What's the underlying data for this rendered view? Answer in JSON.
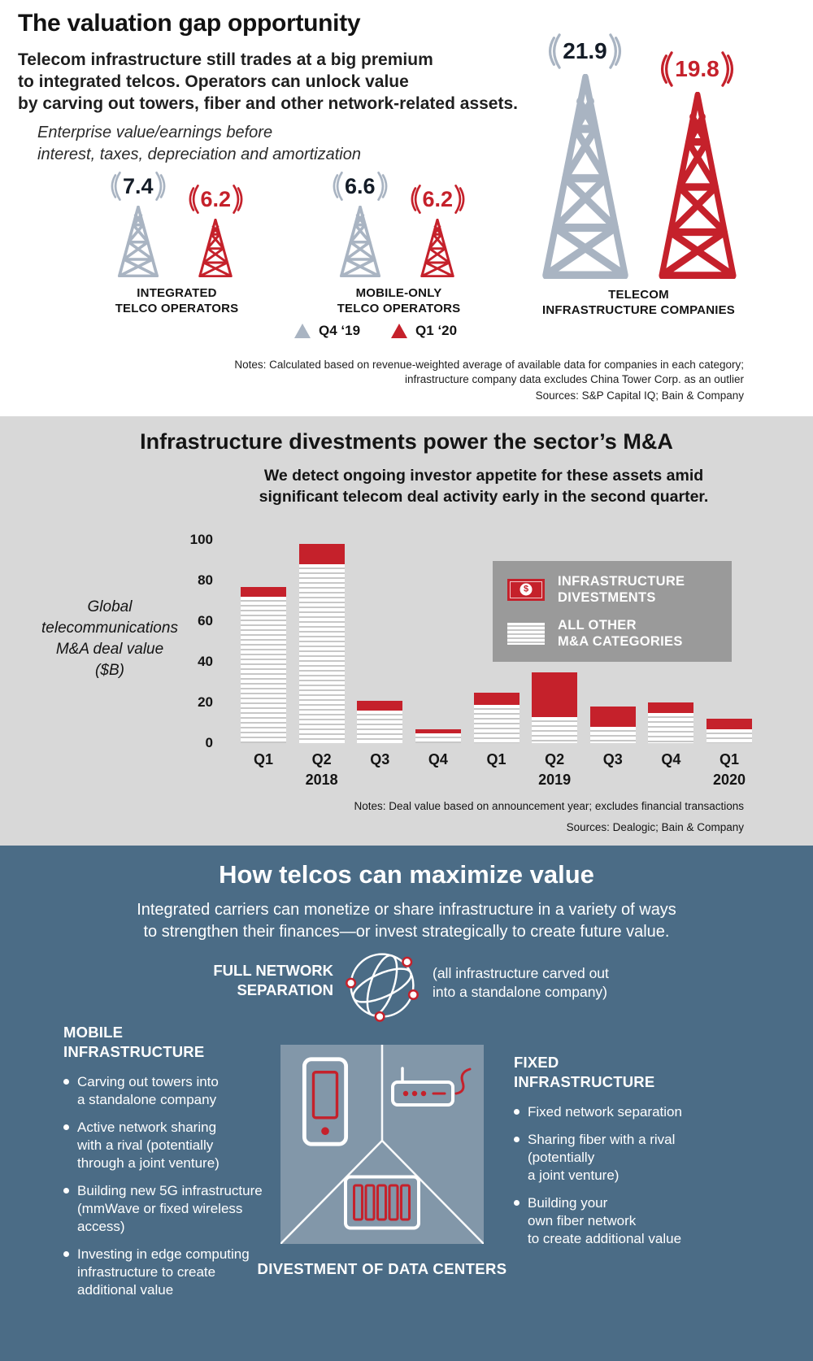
{
  "colors": {
    "accent_red": "#c5212b",
    "tower_gray": "#a9b4c2",
    "mid_bg": "#d8d8d8",
    "legend_bg": "#9a9a9a",
    "bottom_bg": "#4b6c86",
    "panel_bg": "#8297a9"
  },
  "section_valuation": {
    "title": "The valuation gap opportunity",
    "subtitle": "Telecom infrastructure still trades at a big premium\nto integrated telcos. Operators can unlock value\nby carving out towers, fiber and other network-related assets.",
    "metric_definition": "Enterprise value/earnings before\ninterest, taxes, depreciation and amortization",
    "groups": [
      {
        "label": "INTEGRATED\nTELCO OPERATORS"
      },
      {
        "label": "MOBILE-ONLY\nTELCO OPERATORS"
      },
      {
        "label": "TELECOM\nINFRASTRUCTURE COMPANIES"
      }
    ],
    "legend_q4": "Q4 ‘19",
    "legend_q1": "Q1 ‘20",
    "notes": "Notes: Calculated based on revenue-weighted average of available data for companies in each category;\ninfrastructure company data excludes China Tower Corp. as an outlier",
    "sources": "Sources: S&P Capital IQ; Bain & Company"
  },
  "section_ma": {
    "title": "Infrastructure divestments power the sector’s M&A",
    "subtitle": "We detect ongoing investor appetite for these assets amid\nsignificant telecom deal activity early in the second quarter.",
    "axis_title": "Global\ntelecommunications\nM&A deal value\n($B)",
    "legend_infra": "INFRASTRUCTURE\nDIVESTMENTS",
    "legend_other": "ALL OTHER\nM&A CATEGORIES",
    "notes": "Notes: Deal value based on announcement year; excludes financial transactions",
    "sources": "Sources: Dealogic; Bain & Company"
  },
  "chart_data": [
    {
      "type": "bar",
      "title": "Enterprise value/earnings before interest, taxes, depreciation and amortization (EV/EBITDA)",
      "categories": [
        "Integrated telco operators",
        "Mobile-only telco operators",
        "Telecom infrastructure companies"
      ],
      "series": [
        {
          "name": "Q4 '19",
          "values": [
            7.4,
            6.6,
            21.9
          ]
        },
        {
          "name": "Q1 '20",
          "values": [
            6.2,
            6.2,
            19.8
          ]
        }
      ],
      "legend_position": "bottom"
    },
    {
      "type": "bar",
      "stacked": true,
      "title": "Global telecommunications M&A deal value ($B)",
      "categories": [
        "Q1",
        "Q2",
        "Q3",
        "Q4",
        "Q1",
        "Q2",
        "Q3",
        "Q4",
        "Q1"
      ],
      "year_labels": [
        "",
        "2018",
        "",
        "",
        "",
        "2019",
        "",
        "",
        "2020"
      ],
      "series": [
        {
          "name": "All other M&A categories",
          "values": [
            72,
            88,
            16,
            5,
            19,
            13,
            8,
            15,
            7
          ]
        },
        {
          "name": "Infrastructure divestments",
          "values": [
            5,
            10,
            5,
            2,
            6,
            22,
            10,
            5,
            5
          ]
        }
      ],
      "ylim": [
        0,
        100
      ],
      "yticks": [
        100,
        80,
        60,
        40,
        20,
        0
      ],
      "grid": false,
      "legend_position": "upper right"
    }
  ],
  "section_value": {
    "title": "How telcos can maximize value",
    "subtitle": "Integrated carriers can monetize or share infrastructure in a variety of ways\nto strengthen their finances—or invest strategically to create future value.",
    "full_network_label": "FULL NETWORK\nSEPARATION",
    "full_network_desc": "(all infrastructure carved out\ninto a standalone company)",
    "mobile_heading": "MOBILE\nINFRASTRUCTURE",
    "mobile_bullets": [
      "Carving out towers into\na standalone company",
      "Active network sharing\nwith a rival (potentially\nthrough a joint venture)",
      "Building new 5G infrastructure\n(mmWave or fixed wireless access)",
      "Investing in edge computing\ninfrastructure to create\nadditional value"
    ],
    "fixed_heading": "FIXED\nINFRASTRUCTURE",
    "fixed_bullets": [
      "Fixed network separation",
      "Sharing fiber with a rival\n(potentially\na joint venture)",
      "Building your\nown fiber network\nto create additional value"
    ],
    "datacenter_label": "DIVESTMENT OF DATA CENTERS"
  },
  "icons": {
    "tower": "lattice-tower-icon",
    "signal": "signal-arcs-icon",
    "triangle": "triangle-marker-icon",
    "bill": "dollar-bill-icon",
    "globe": "network-globe-icon",
    "phone": "smartphone-icon",
    "router": "router-icon",
    "servers": "data-center-icon"
  }
}
